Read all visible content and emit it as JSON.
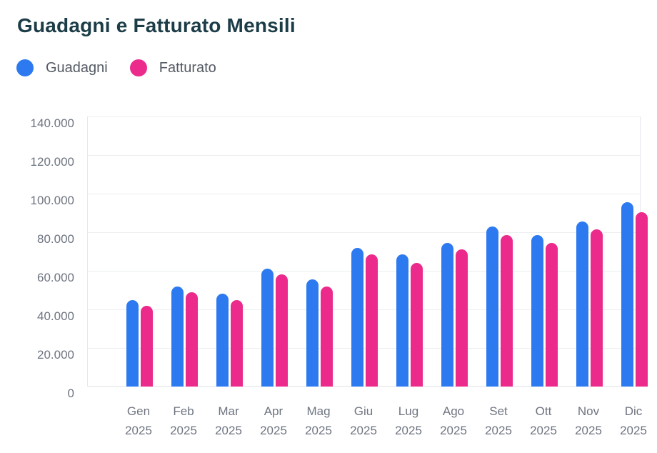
{
  "chart_data": {
    "type": "bar",
    "title": "Guadagni e Fatturato Mensili",
    "categories": [
      "Gen 2025",
      "Feb 2025",
      "Mar 2025",
      "Apr 2025",
      "Mag 2025",
      "Giu 2025",
      "Lug 2025",
      "Ago 2025",
      "Set 2025",
      "Ott 2025",
      "Nov 2025",
      "Dic 2025"
    ],
    "series": [
      {
        "name": "Guadagni",
        "color": "#2d7af0",
        "values": [
          45000,
          52000,
          48000,
          61000,
          55500,
          72000,
          68500,
          74500,
          83000,
          78500,
          85500,
          95500
        ]
      },
      {
        "name": "Fatturato",
        "color": "#ec2a8c",
        "values": [
          42000,
          49000,
          45000,
          58000,
          52000,
          68500,
          64000,
          71000,
          78500,
          74500,
          81500,
          90500
        ]
      }
    ],
    "ylim": [
      0,
      140000
    ],
    "ytick_step": 20000,
    "yticks": [
      {
        "value": 0,
        "label": "0"
      },
      {
        "value": 20000,
        "label": "20.000"
      },
      {
        "value": 40000,
        "label": "40.000"
      },
      {
        "value": 60000,
        "label": "60.000"
      },
      {
        "value": 80000,
        "label": "80.000"
      },
      {
        "value": 100000,
        "label": "100.000"
      },
      {
        "value": 120000,
        "label": "120.000"
      },
      {
        "value": 140000,
        "label": "140.000"
      }
    ],
    "grid": true,
    "legend_position": "top-left",
    "theme": {
      "title_color": "#1c3d47",
      "legend_text_color": "#545a63",
      "axis_text_color": "#6e7480",
      "grid_color": "#eceef0",
      "axis_border_color": "#e4e7eb",
      "background": "#ffffff"
    }
  }
}
